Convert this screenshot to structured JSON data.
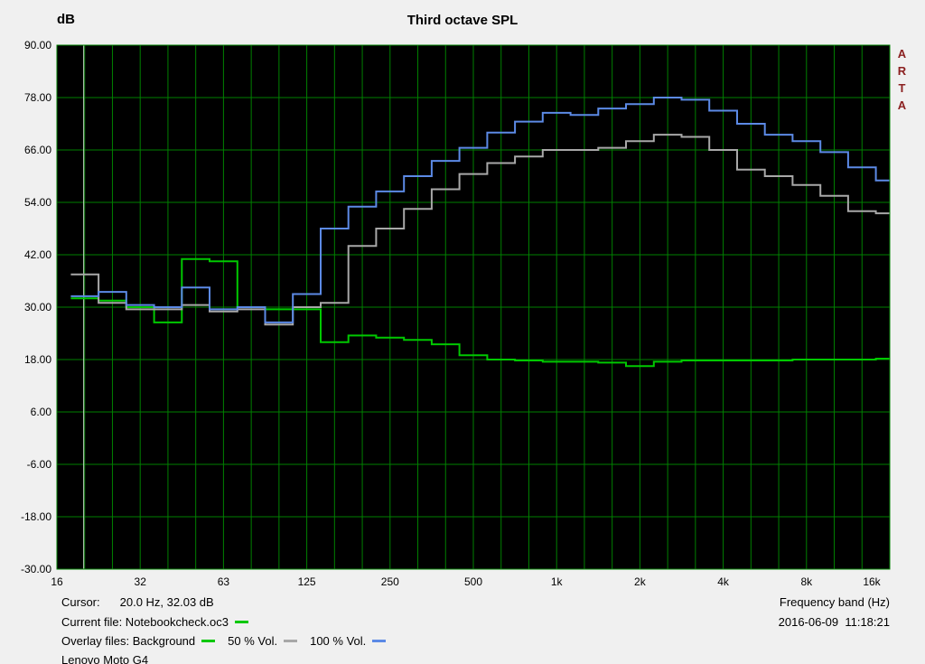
{
  "header": {
    "y_unit": "dB",
    "title": "Third octave SPL",
    "brand": "ARTA"
  },
  "footer": {
    "cursor_label": "Cursor:",
    "cursor_value": "20.0 Hz, 32.03 dB",
    "current_file": "Current file: Notebookcheck.oc3",
    "overlay_label": "Overlay files:",
    "device": "Lenovo Moto G4",
    "x_axis_label": "Frequency band (Hz)",
    "datetime": "2016-06-09  11:18:21"
  },
  "colors": {
    "plot_bg": "#000000",
    "grid": "#008000",
    "cursor": "#cde6cd",
    "current_file": "#00c800",
    "axis_text": "#000000"
  },
  "chart_data": {
    "type": "line",
    "step": true,
    "title": "Third octave SPL",
    "xlabel": "Frequency band (Hz)",
    "ylabel": "dB",
    "x_scale": "log",
    "xlim_hz": [
      16,
      16000
    ],
    "ylim": [
      -30,
      90
    ],
    "ytick_step": 12,
    "yticks": [
      "90.00",
      "78.00",
      "66.00",
      "54.00",
      "42.00",
      "30.00",
      "18.00",
      "6.00",
      "-6.00",
      "-18.00",
      "-30.00"
    ],
    "xticks": [
      "16",
      "32",
      "63",
      "125",
      "250",
      "500",
      "1k",
      "2k",
      "4k",
      "8k",
      "16k"
    ],
    "band_centers_hz": [
      20,
      25,
      31.5,
      40,
      50,
      63,
      80,
      100,
      125,
      160,
      200,
      250,
      315,
      400,
      500,
      630,
      800,
      1000,
      1250,
      1600,
      2000,
      2500,
      3150,
      4000,
      5000,
      6300,
      8000,
      10000,
      12500,
      16000
    ],
    "cursor": {
      "freq_hz": 20.0,
      "value_db": 32.03
    },
    "series": [
      {
        "name": "Background",
        "color": "#00c800",
        "values": [
          32.0,
          31.5,
          30.0,
          26.5,
          41.0,
          40.5,
          30.0,
          29.5,
          29.5,
          22.0,
          23.5,
          23.0,
          22.5,
          21.5,
          19.0,
          18.0,
          17.8,
          17.5,
          17.5,
          17.3,
          16.5,
          17.5,
          17.8,
          17.8,
          17.8,
          17.8,
          18.0,
          18.0,
          18.0,
          18.2
        ]
      },
      {
        "name": "50 % Vol.",
        "color": "#a8a8a8",
        "values": [
          37.5,
          31.0,
          29.5,
          29.5,
          30.5,
          29.0,
          29.5,
          26.0,
          30.0,
          31.0,
          44.0,
          48.0,
          52.5,
          57.0,
          60.5,
          63.0,
          64.5,
          66.0,
          66.0,
          66.5,
          68.0,
          69.5,
          69.0,
          66.0,
          61.5,
          60.0,
          58.0,
          55.5,
          52.0,
          51.5
        ]
      },
      {
        "name": "100 % Vol.",
        "color": "#5c8ae6",
        "values": [
          32.5,
          33.5,
          30.5,
          30.0,
          34.5,
          29.5,
          30.0,
          26.5,
          33.0,
          48.0,
          53.0,
          56.5,
          60.0,
          63.5,
          66.5,
          70.0,
          72.5,
          74.5,
          74.0,
          75.5,
          76.5,
          78.0,
          77.5,
          75.0,
          72.0,
          69.5,
          68.0,
          65.5,
          62.0,
          59.0
        ]
      }
    ],
    "legend_position": "bottom-left"
  }
}
